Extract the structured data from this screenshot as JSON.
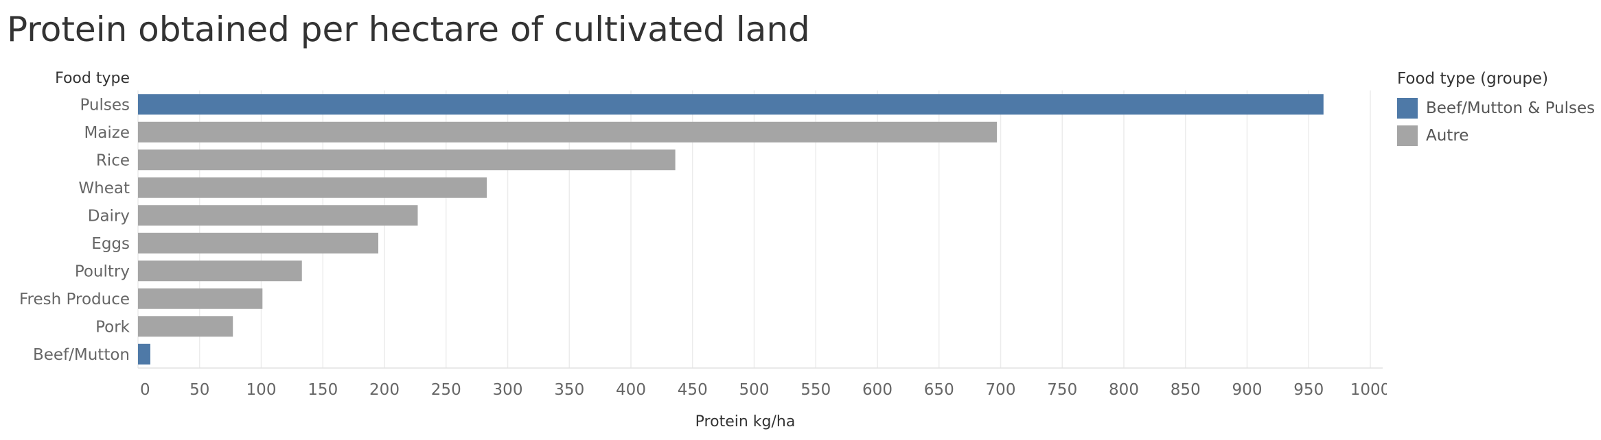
{
  "title": "Protein obtained per hectare of cultivated land",
  "chart_data": {
    "type": "bar",
    "orientation": "horizontal",
    "title": "Protein obtained per hectare of cultivated land",
    "ylabel": "Food type",
    "xlabel": "Protein kg/ha",
    "xlim": [
      0,
      1000
    ],
    "xticks": [
      0,
      50,
      100,
      150,
      200,
      250,
      300,
      350,
      400,
      450,
      500,
      550,
      600,
      650,
      700,
      750,
      800,
      850,
      900,
      950,
      1000
    ],
    "grid": "vertical",
    "categories": [
      "Pulses",
      "Maize",
      "Rice",
      "Wheat",
      "Dairy",
      "Eggs",
      "Poultry",
      "Fresh Produce",
      "Pork",
      "Beef/Mutton"
    ],
    "values": [
      962,
      697,
      436,
      283,
      227,
      195,
      133,
      101,
      77,
      10
    ],
    "groups": [
      "Beef/Mutton & Pulses",
      "Autre",
      "Autre",
      "Autre",
      "Autre",
      "Autre",
      "Autre",
      "Autre",
      "Autre",
      "Beef/Mutton & Pulses"
    ],
    "legend": {
      "title": "Food type (groupe)",
      "position": "right",
      "entries": [
        {
          "label": "Beef/Mutton & Pulses",
          "color": "#4e79a7"
        },
        {
          "label": "Autre",
          "color": "#a5a5a5"
        }
      ]
    }
  }
}
